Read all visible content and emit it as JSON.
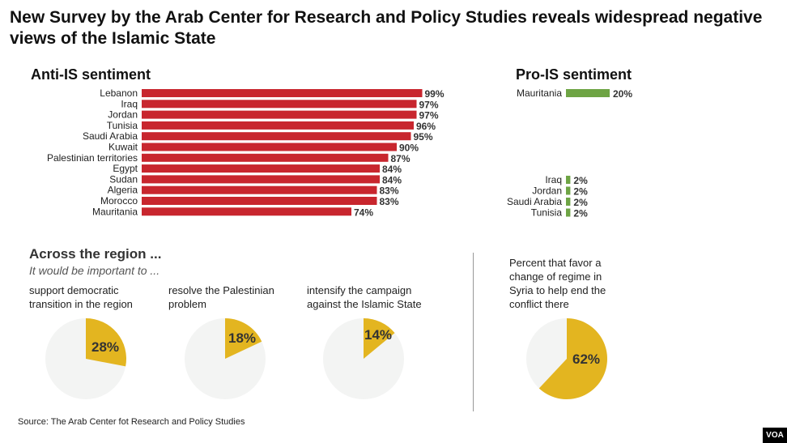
{
  "title": "New Survey by the Arab Center for Research and Policy Studies reveals widespread negative views of the Islamic State",
  "source": "Source: The Arab Center fot Research and Policy Studies",
  "brand": "VOA",
  "colors": {
    "anti": "#C8262E",
    "pro": "#6EA444",
    "pie_highlight": "#E3B520",
    "pie_rest": "#F3F4F3"
  },
  "region": {
    "title": "Across the region ...",
    "subtitle": "It would be important to ...",
    "pies": [
      {
        "label": "support democratic transition in the region",
        "value": 28,
        "display": "28%"
      },
      {
        "label": "resolve the Palestinian problem",
        "value": 18,
        "display": "18%"
      },
      {
        "label": "intensify the campaign against the Islamic State",
        "value": 14,
        "display": "14%"
      },
      {
        "label": "Percent that favor a change of regime in Syria to help end the conflict there",
        "value": 62,
        "display": "62%"
      }
    ]
  },
  "chart_data": [
    {
      "type": "bar",
      "title": "Anti-IS sentiment",
      "orientation": "horizontal",
      "categories": [
        "Lebanon",
        "Iraq",
        "Jordan",
        "Tunisia",
        "Saudi Arabia",
        "Kuwait",
        "Palestinian territories",
        "Egypt",
        "Sudan",
        "Algeria",
        "Morocco",
        "Mauritania"
      ],
      "values": [
        99,
        97,
        97,
        96,
        95,
        90,
        87,
        84,
        84,
        83,
        83,
        74
      ],
      "value_labels": [
        "99%",
        "97%",
        "97%",
        "96%",
        "95%",
        "90%",
        "87%",
        "84%",
        "84%",
        "83%",
        "83%",
        "74%"
      ],
      "xlim": [
        0,
        100
      ],
      "color": "#C8262E"
    },
    {
      "type": "bar",
      "title": "Pro-IS sentiment",
      "orientation": "horizontal",
      "categories": [
        "Mauritania",
        "Iraq",
        "Jordan",
        "Saudi Arabia",
        "Tunisia"
      ],
      "values": [
        20,
        2,
        2,
        2,
        2
      ],
      "value_labels": [
        "20%",
        "2%",
        "2%",
        "2%",
        "2%"
      ],
      "xlim": [
        0,
        100
      ],
      "color": "#6EA444"
    }
  ]
}
